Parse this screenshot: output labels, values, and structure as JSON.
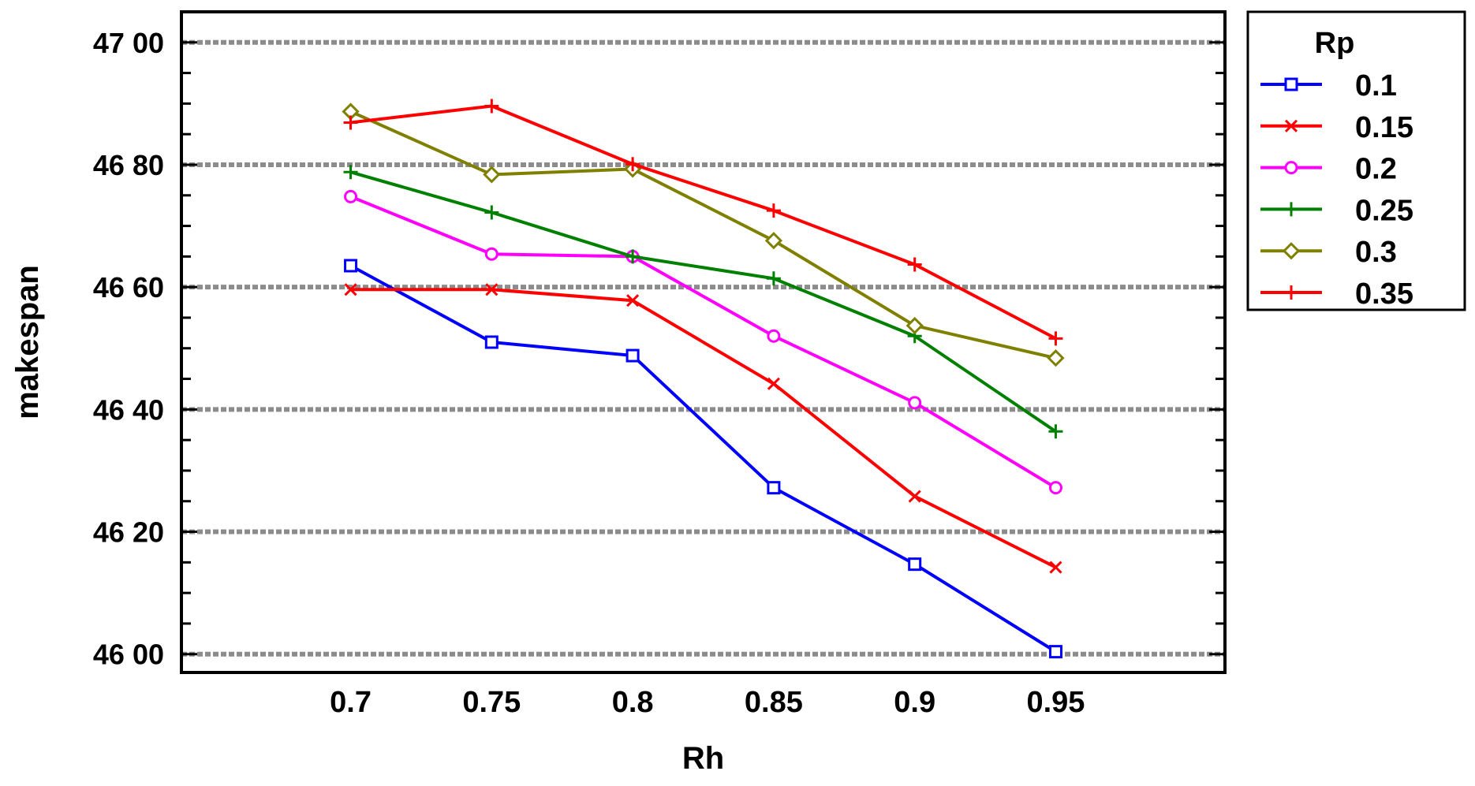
{
  "chart_data": {
    "type": "line",
    "title": "",
    "xlabel": "Rh",
    "ylabel": "makespan",
    "categories": [
      "0.7",
      "0.75",
      "0.8",
      "0.85",
      "0.9",
      "0.95"
    ],
    "x": [
      0.7,
      0.75,
      0.8,
      0.85,
      0.9,
      0.95
    ],
    "xlim": [
      0.64,
      1.01
    ],
    "ylim": [
      4597,
      4705
    ],
    "yticks": [
      4600,
      4620,
      4640,
      4660,
      4680,
      4700
    ],
    "ytick_labels": [
      "46 00",
      "46 20",
      "46 40",
      "46 60",
      "46 80",
      "47 00"
    ],
    "grid": "horizontal dashed at major ticks",
    "legend": {
      "title": "Rp",
      "placement": "outside-right-top"
    },
    "series": [
      {
        "name": "0.1",
        "color": "#0000ff",
        "marker": "square",
        "values": [
          4663.5,
          4651.0,
          4648.8,
          4627.2,
          4614.7,
          4600.4
        ]
      },
      {
        "name": "0.15",
        "color": "#ff0000",
        "marker": "x",
        "values": [
          4659.6,
          4659.6,
          4657.8,
          4644.2,
          4625.8,
          4614.2
        ]
      },
      {
        "name": "0.2",
        "color": "#ff00ff",
        "marker": "circle",
        "values": [
          4674.8,
          4665.4,
          4665.0,
          4652.0,
          4641.1,
          4627.2
        ]
      },
      {
        "name": "0.25",
        "color": "#008000",
        "marker": "plus",
        "values": [
          4678.8,
          4672.2,
          4665.0,
          4661.4,
          4652.0,
          4636.4
        ]
      },
      {
        "name": "0.3",
        "color": "#808000",
        "marker": "diamond",
        "values": [
          4688.7,
          4678.4,
          4679.3,
          4667.6,
          4653.7,
          4648.4
        ]
      },
      {
        "name": "0.35",
        "color": "#ff0000",
        "marker": "plus",
        "values": [
          4686.9,
          4689.6,
          4680.1,
          4672.5,
          4663.7,
          4651.6
        ]
      }
    ]
  }
}
